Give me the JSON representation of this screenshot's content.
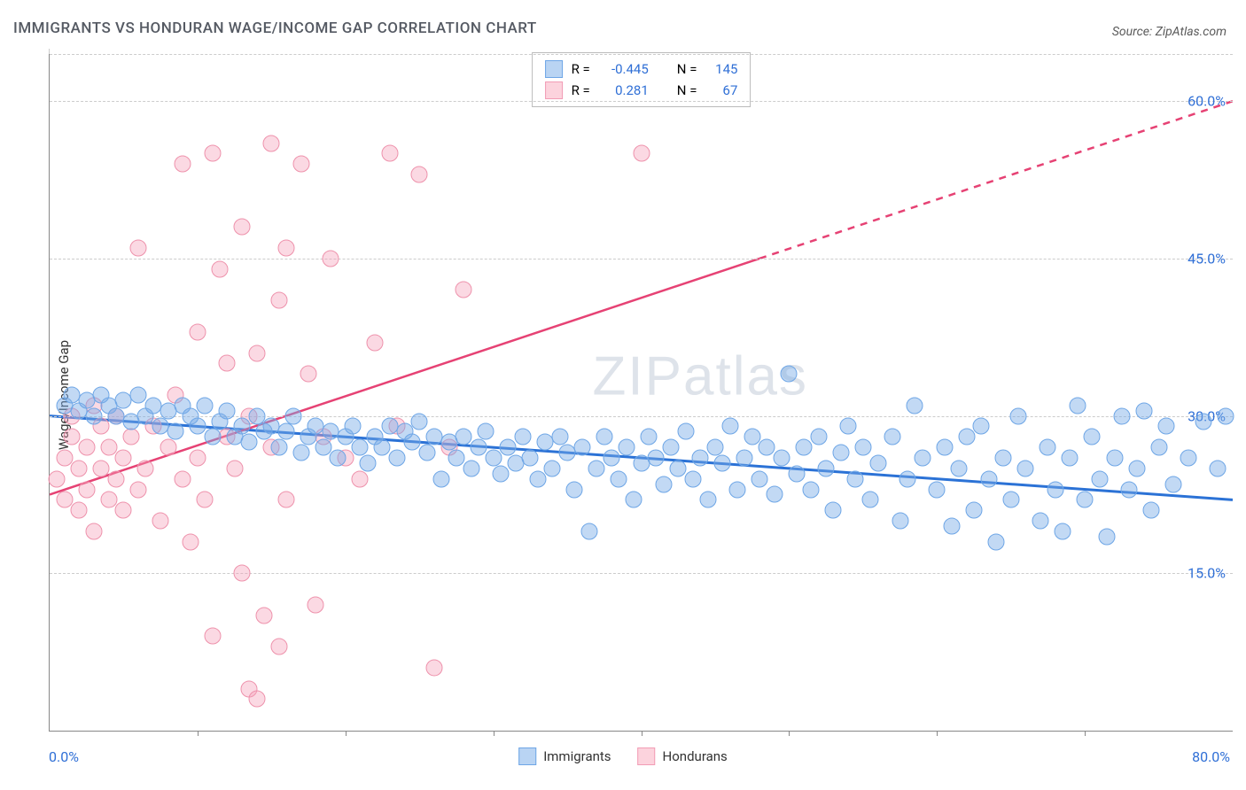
{
  "chart": {
    "title": "IMMIGRANTS VS HONDURAN WAGE/INCOME GAP CORRELATION CHART",
    "source": "Source: ZipAtlas.com",
    "ylabel": "Wage/Income Gap",
    "x_axis_start_label": "0.0%",
    "x_axis_end_label": "80.0%",
    "watermark_a": "ZIP",
    "watermark_b": "atlas",
    "xlim": [
      0,
      80
    ],
    "ylim": [
      0,
      65
    ],
    "ytick_labels": [
      {
        "v": 15,
        "label": "15.0%"
      },
      {
        "v": 30,
        "label": "30.0%"
      },
      {
        "v": 45,
        "label": "45.0%"
      },
      {
        "v": 60,
        "label": "60.0%"
      }
    ],
    "ygrid_extra_top": 5,
    "xtick_every": 10,
    "background_color": "#ffffff",
    "grid_color": "#cccccc",
    "axis_color": "#888888",
    "label_color_x": "#2f6fd6",
    "legend_bottom": [
      {
        "name": "Immigrants",
        "fill": "#b9d4f3",
        "stroke": "#6ea6e6"
      },
      {
        "name": "Hondurans",
        "fill": "#fcd3dd",
        "stroke": "#f29cb5"
      }
    ],
    "correlation_box": [
      {
        "swatch_fill": "#b9d4f3",
        "swatch_stroke": "#6ea6e6",
        "r_label": "R =",
        "r_value": "-0.445",
        "n_label": "N =",
        "n_value": "145"
      },
      {
        "swatch_fill": "#fcd3dd",
        "swatch_stroke": "#f29cb5",
        "r_label": "R =",
        "r_value": "0.281",
        "n_label": "N =",
        "n_value": "67"
      }
    ],
    "series": {
      "immigrants": {
        "color_fill": "rgba(120,170,230,0.45)",
        "color_stroke": "#6ea6e6",
        "marker_radius": 8.5,
        "trend_color": "#2b72d6",
        "trend_width": 3,
        "trend": {
          "x1": 0,
          "y1": 30,
          "x2": 80,
          "y2": 22
        },
        "points": [
          [
            1,
            31
          ],
          [
            1.5,
            32
          ],
          [
            2,
            30.5
          ],
          [
            2.5,
            31.5
          ],
          [
            3,
            30
          ],
          [
            3.5,
            32
          ],
          [
            4,
            31
          ],
          [
            4.5,
            30
          ],
          [
            5,
            31.5
          ],
          [
            5.5,
            29.5
          ],
          [
            6,
            32
          ],
          [
            6.5,
            30
          ],
          [
            7,
            31
          ],
          [
            7.5,
            29
          ],
          [
            8,
            30.5
          ],
          [
            8.5,
            28.5
          ],
          [
            9,
            31
          ],
          [
            9.5,
            30
          ],
          [
            10,
            29
          ],
          [
            10.5,
            31
          ],
          [
            11,
            28
          ],
          [
            11.5,
            29.5
          ],
          [
            12,
            30.5
          ],
          [
            12.5,
            28
          ],
          [
            13,
            29
          ],
          [
            13.5,
            27.5
          ],
          [
            14,
            30
          ],
          [
            14.5,
            28.5
          ],
          [
            15,
            29
          ],
          [
            15.5,
            27
          ],
          [
            16,
            28.5
          ],
          [
            16.5,
            30
          ],
          [
            17,
            26.5
          ],
          [
            17.5,
            28
          ],
          [
            18,
            29
          ],
          [
            18.5,
            27
          ],
          [
            19,
            28.5
          ],
          [
            19.5,
            26
          ],
          [
            20,
            28
          ],
          [
            20.5,
            29
          ],
          [
            21,
            27
          ],
          [
            21.5,
            25.5
          ],
          [
            22,
            28
          ],
          [
            22.5,
            27
          ],
          [
            23,
            29
          ],
          [
            23.5,
            26
          ],
          [
            24,
            28.5
          ],
          [
            24.5,
            27.5
          ],
          [
            25,
            29.5
          ],
          [
            25.5,
            26.5
          ],
          [
            26,
            28
          ],
          [
            26.5,
            24
          ],
          [
            27,
            27.5
          ],
          [
            27.5,
            26
          ],
          [
            28,
            28
          ],
          [
            28.5,
            25
          ],
          [
            29,
            27
          ],
          [
            29.5,
            28.5
          ],
          [
            30,
            26
          ],
          [
            30.5,
            24.5
          ],
          [
            31,
            27
          ],
          [
            31.5,
            25.5
          ],
          [
            32,
            28
          ],
          [
            32.5,
            26
          ],
          [
            33,
            24
          ],
          [
            33.5,
            27.5
          ],
          [
            34,
            25
          ],
          [
            34.5,
            28
          ],
          [
            35,
            26.5
          ],
          [
            35.5,
            23
          ],
          [
            36,
            27
          ],
          [
            36.5,
            19
          ],
          [
            37,
            25
          ],
          [
            37.5,
            28
          ],
          [
            38,
            26
          ],
          [
            38.5,
            24
          ],
          [
            39,
            27
          ],
          [
            39.5,
            22
          ],
          [
            40,
            25.5
          ],
          [
            40.5,
            28
          ],
          [
            41,
            26
          ],
          [
            41.5,
            23.5
          ],
          [
            42,
            27
          ],
          [
            42.5,
            25
          ],
          [
            43,
            28.5
          ],
          [
            43.5,
            24
          ],
          [
            44,
            26
          ],
          [
            44.5,
            22
          ],
          [
            45,
            27
          ],
          [
            45.5,
            25.5
          ],
          [
            46,
            29
          ],
          [
            46.5,
            23
          ],
          [
            47,
            26
          ],
          [
            47.5,
            28
          ],
          [
            48,
            24
          ],
          [
            48.5,
            27
          ],
          [
            49,
            22.5
          ],
          [
            49.5,
            26
          ],
          [
            50,
            34
          ],
          [
            50.5,
            24.5
          ],
          [
            51,
            27
          ],
          [
            51.5,
            23
          ],
          [
            52,
            28
          ],
          [
            52.5,
            25
          ],
          [
            53,
            21
          ],
          [
            53.5,
            26.5
          ],
          [
            54,
            29
          ],
          [
            54.5,
            24
          ],
          [
            55,
            27
          ],
          [
            55.5,
            22
          ],
          [
            56,
            25.5
          ],
          [
            57,
            28
          ],
          [
            57.5,
            20
          ],
          [
            58,
            24
          ],
          [
            58.5,
            31
          ],
          [
            59,
            26
          ],
          [
            60,
            23
          ],
          [
            60.5,
            27
          ],
          [
            61,
            19.5
          ],
          [
            61.5,
            25
          ],
          [
            62,
            28
          ],
          [
            62.5,
            21
          ],
          [
            63,
            29
          ],
          [
            63.5,
            24
          ],
          [
            64,
            18
          ],
          [
            64.5,
            26
          ],
          [
            65,
            22
          ],
          [
            65.5,
            30
          ],
          [
            66,
            25
          ],
          [
            67,
            20
          ],
          [
            67.5,
            27
          ],
          [
            68,
            23
          ],
          [
            68.5,
            19
          ],
          [
            69,
            26
          ],
          [
            69.5,
            31
          ],
          [
            70,
            22
          ],
          [
            70.5,
            28
          ],
          [
            71,
            24
          ],
          [
            71.5,
            18.5
          ],
          [
            72,
            26
          ],
          [
            72.5,
            30
          ],
          [
            73,
            23
          ],
          [
            73.5,
            25
          ],
          [
            74,
            30.5
          ],
          [
            74.5,
            21
          ],
          [
            75,
            27
          ],
          [
            75.5,
            29
          ],
          [
            76,
            23.5
          ],
          [
            77,
            26
          ],
          [
            78,
            29.5
          ],
          [
            79,
            25
          ],
          [
            79.5,
            30
          ]
        ]
      },
      "hondurans": {
        "color_fill": "rgba(244,160,185,0.40)",
        "color_stroke": "#ee92ac",
        "marker_radius": 8.5,
        "trend_color": "#e64274",
        "trend_width": 2.5,
        "trend_solid": {
          "x1": 0,
          "y1": 22.5,
          "x2": 48,
          "y2": 45
        },
        "trend_dashed": {
          "x1": 48,
          "y1": 45,
          "x2": 80,
          "y2": 60
        },
        "points": [
          [
            0.5,
            24
          ],
          [
            1,
            26
          ],
          [
            1,
            22
          ],
          [
            1.5,
            28
          ],
          [
            1.5,
            30
          ],
          [
            2,
            25
          ],
          [
            2,
            21
          ],
          [
            2.5,
            27
          ],
          [
            2.5,
            23
          ],
          [
            3,
            31
          ],
          [
            3,
            19
          ],
          [
            3.5,
            25
          ],
          [
            3.5,
            29
          ],
          [
            4,
            22
          ],
          [
            4,
            27
          ],
          [
            4.5,
            24
          ],
          [
            4.5,
            30
          ],
          [
            5,
            26
          ],
          [
            5,
            21
          ],
          [
            5.5,
            28
          ],
          [
            6,
            46
          ],
          [
            6,
            23
          ],
          [
            6.5,
            25
          ],
          [
            7,
            29
          ],
          [
            7.5,
            20
          ],
          [
            8,
            27
          ],
          [
            8.5,
            32
          ],
          [
            9,
            24
          ],
          [
            9,
            54
          ],
          [
            9.5,
            18
          ],
          [
            10,
            26
          ],
          [
            10,
            38
          ],
          [
            10.5,
            22
          ],
          [
            11,
            55
          ],
          [
            11.5,
            44
          ],
          [
            11,
            9
          ],
          [
            12,
            28
          ],
          [
            12,
            35
          ],
          [
            12.5,
            25
          ],
          [
            13,
            15
          ],
          [
            13,
            48
          ],
          [
            13.5,
            30
          ],
          [
            13.5,
            4
          ],
          [
            14,
            36
          ],
          [
            14,
            3
          ],
          [
            14.5,
            11
          ],
          [
            15,
            27
          ],
          [
            15,
            56
          ],
          [
            15.5,
            41
          ],
          [
            15.5,
            8
          ],
          [
            16,
            46
          ],
          [
            16,
            22
          ],
          [
            17,
            54
          ],
          [
            17.5,
            34
          ],
          [
            18,
            12
          ],
          [
            18.5,
            28
          ],
          [
            19,
            45
          ],
          [
            20,
            26
          ],
          [
            21,
            24
          ],
          [
            22,
            37
          ],
          [
            23,
            55
          ],
          [
            23.5,
            29
          ],
          [
            25,
            53
          ],
          [
            26,
            6
          ],
          [
            27,
            27
          ],
          [
            28,
            42
          ],
          [
            40,
            55
          ]
        ]
      }
    }
  }
}
